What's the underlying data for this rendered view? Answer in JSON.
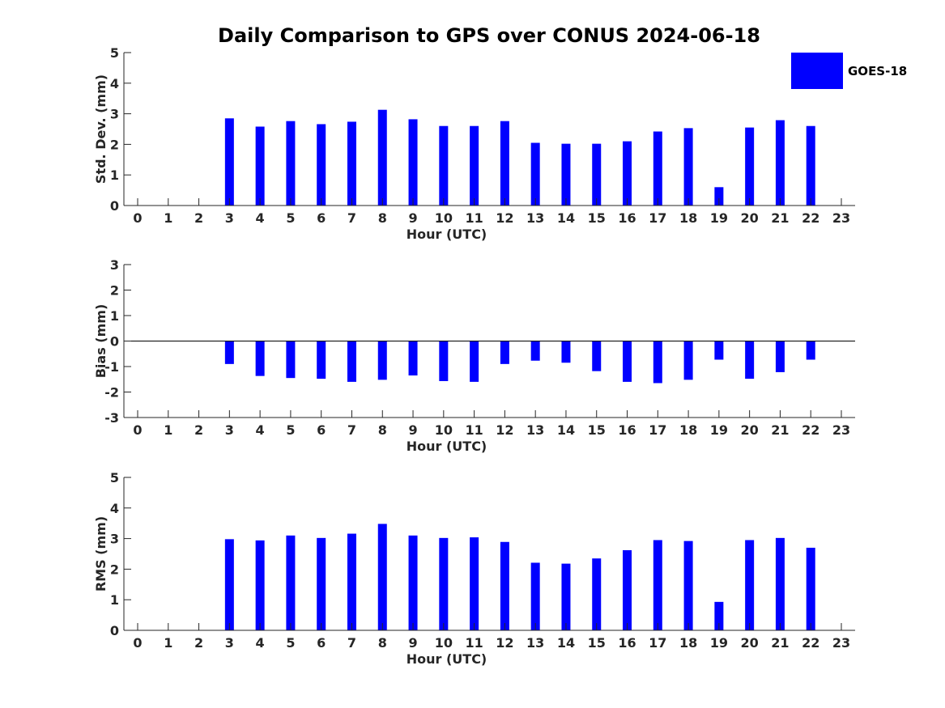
{
  "title": "Daily Comparison to GPS over CONUS 2024-06-18",
  "legend": {
    "label": "GOES-18",
    "color": "#0000ff",
    "placement": "top-right"
  },
  "chart_data": [
    {
      "type": "bar",
      "ylabel": "Std. Dev. (mm)",
      "xlabel": "Hour (UTC)",
      "ylim": [
        0,
        5
      ],
      "yticks": [
        0,
        1,
        2,
        3,
        4,
        5
      ],
      "x": [
        0,
        1,
        2,
        3,
        4,
        5,
        6,
        7,
        8,
        9,
        10,
        11,
        12,
        13,
        14,
        15,
        16,
        17,
        18,
        19,
        20,
        21,
        22,
        23
      ],
      "series": [
        {
          "name": "GOES-18",
          "values": [
            null,
            null,
            null,
            2.85,
            2.58,
            2.76,
            2.66,
            2.74,
            3.13,
            2.82,
            2.6,
            2.6,
            2.76,
            2.05,
            2.02,
            2.02,
            2.1,
            2.42,
            2.53,
            0.6,
            2.55,
            2.79,
            2.6,
            null
          ]
        }
      ]
    },
    {
      "type": "bar",
      "ylabel": "Bias (mm)",
      "xlabel": "Hour (UTC)",
      "ylim": [
        -3,
        3
      ],
      "yticks": [
        -3,
        -2,
        -1,
        0,
        1,
        2,
        3
      ],
      "x": [
        0,
        1,
        2,
        3,
        4,
        5,
        6,
        7,
        8,
        9,
        10,
        11,
        12,
        13,
        14,
        15,
        16,
        17,
        18,
        19,
        20,
        21,
        22,
        23
      ],
      "series": [
        {
          "name": "GOES-18",
          "values": [
            null,
            null,
            null,
            -0.9,
            -1.37,
            -1.45,
            -1.48,
            -1.6,
            -1.52,
            -1.35,
            -1.57,
            -1.6,
            -0.9,
            -0.77,
            -0.85,
            -1.18,
            -1.6,
            -1.65,
            -1.52,
            -0.73,
            -1.48,
            -1.22,
            -0.73,
            null
          ]
        }
      ]
    },
    {
      "type": "bar",
      "ylabel": "RMS (mm)",
      "xlabel": "Hour (UTC)",
      "ylim": [
        0,
        5
      ],
      "yticks": [
        0,
        1,
        2,
        3,
        4,
        5
      ],
      "x": [
        0,
        1,
        2,
        3,
        4,
        5,
        6,
        7,
        8,
        9,
        10,
        11,
        12,
        13,
        14,
        15,
        16,
        17,
        18,
        19,
        20,
        21,
        22,
        23
      ],
      "series": [
        {
          "name": "GOES-18",
          "values": [
            null,
            null,
            null,
            2.98,
            2.94,
            3.1,
            3.02,
            3.16,
            3.48,
            3.1,
            3.02,
            3.04,
            2.89,
            2.21,
            2.18,
            2.35,
            2.62,
            2.95,
            2.92,
            0.93,
            2.95,
            3.02,
            2.7,
            null
          ]
        }
      ]
    }
  ]
}
